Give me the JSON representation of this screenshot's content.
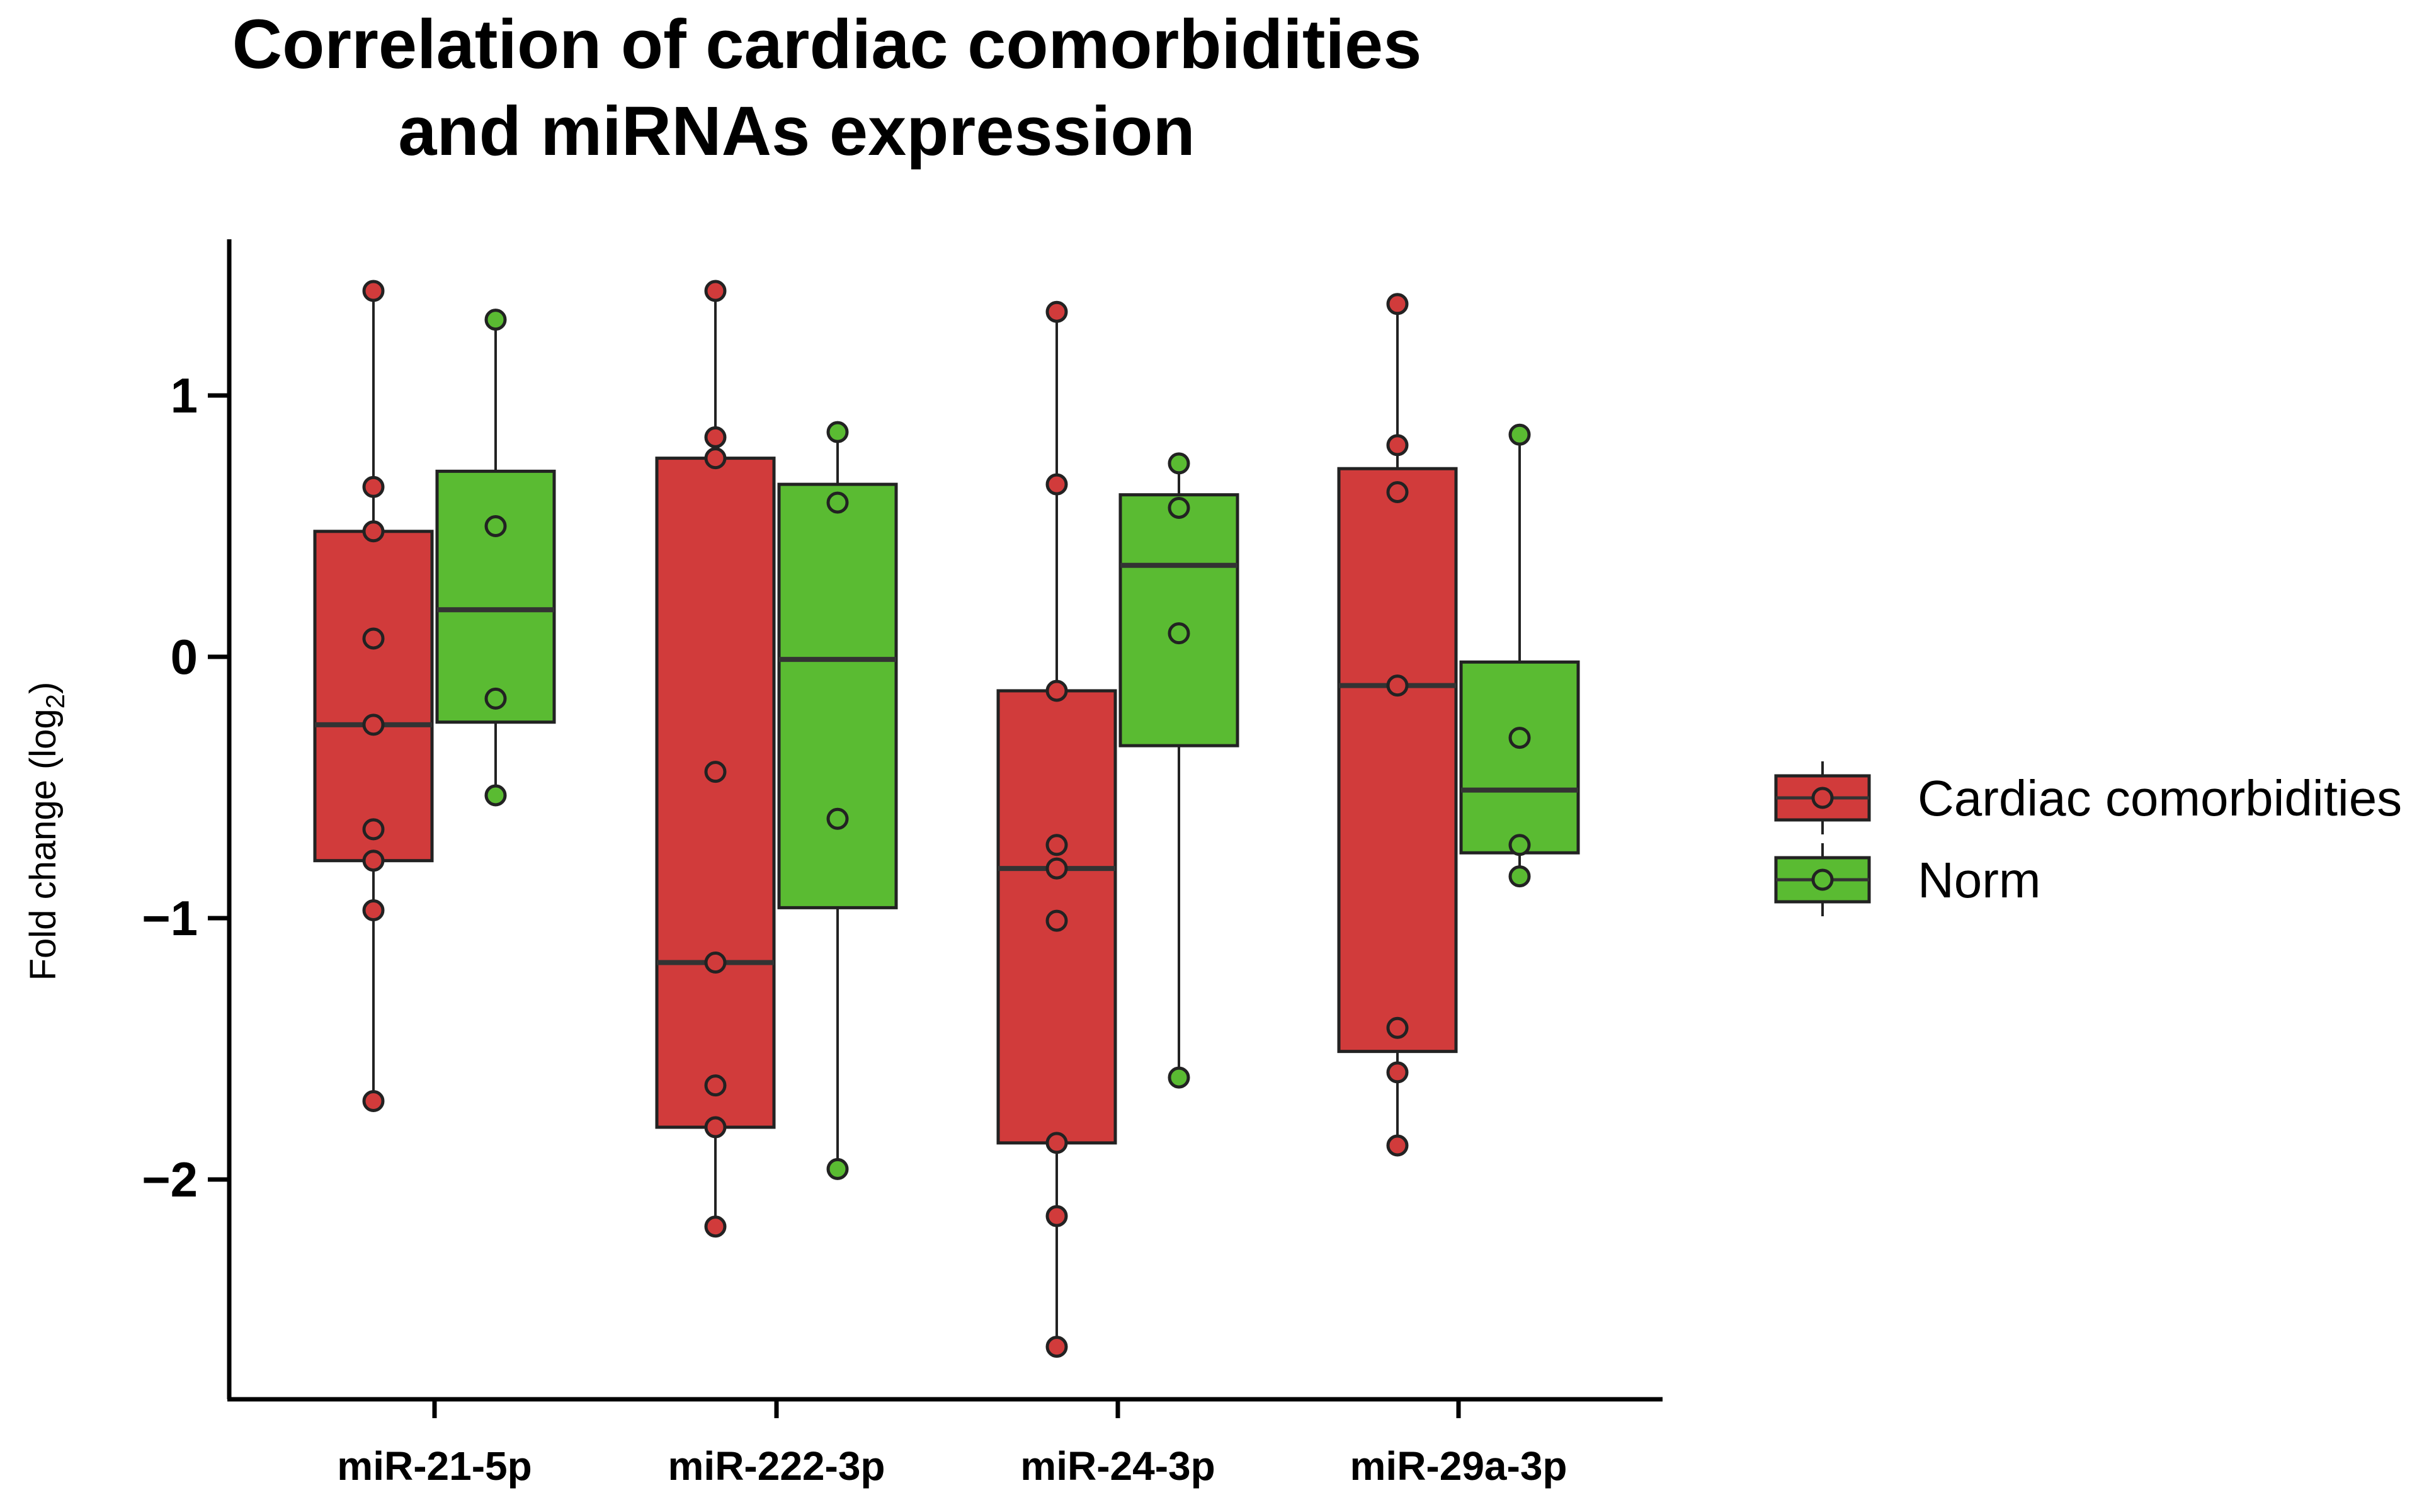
{
  "chart_data": {
    "type": "box",
    "title_lines": [
      "Correlation of cardiac comorbidities",
      "and miRNAs expression"
    ],
    "xlabel": "",
    "ylabel": "Fold change (log",
    "ylabel_subscript": "2",
    "ylabel_close": ")",
    "ylim": [
      -2.85,
      1.6
    ],
    "yticks": [
      1,
      0,
      -1,
      -2
    ],
    "ytick_labels": [
      "1",
      "0",
      "−1",
      "−2"
    ],
    "categories": [
      "miR-21-5p",
      "miR-222-3p",
      "miR-24-3p",
      "miR-29a-3p"
    ],
    "legend_position": "right",
    "series": [
      {
        "name": "Cardiac comorbidities",
        "color": "#d13b3b",
        "boxes": [
          {
            "min": -1.7,
            "q1": -0.78,
            "median": -0.26,
            "q3": 0.48,
            "max": 1.4,
            "points": [
              1.4,
              0.65,
              0.48,
              0.07,
              -0.26,
              -0.66,
              -0.78,
              -0.97,
              -1.7
            ]
          },
          {
            "min": -2.18,
            "q1": -1.8,
            "median": -1.17,
            "q3": 0.76,
            "max": 1.4,
            "points": [
              1.4,
              0.84,
              0.76,
              -0.44,
              -1.17,
              -1.64,
              -1.8,
              -2.18
            ]
          },
          {
            "min": -2.64,
            "q1": -1.86,
            "median": -0.81,
            "q3": -0.13,
            "max": 1.32,
            "points": [
              1.32,
              0.66,
              -0.13,
              -0.72,
              -0.81,
              -1.01,
              -1.86,
              -2.14,
              -2.64
            ]
          },
          {
            "min": -1.87,
            "q1": -1.51,
            "median": -0.11,
            "q3": 0.72,
            "max": 1.35,
            "points": [
              1.35,
              0.81,
              0.63,
              -0.11,
              -1.42,
              -1.59,
              -1.87
            ]
          }
        ]
      },
      {
        "name": "Norm",
        "color": "#5abb32",
        "boxes": [
          {
            "min": -0.53,
            "q1": -0.25,
            "median": 0.18,
            "q3": 0.71,
            "max": 1.29,
            "points": [
              1.29,
              0.5,
              -0.16,
              -0.53
            ]
          },
          {
            "min": -1.96,
            "q1": -0.96,
            "median": -0.01,
            "q3": 0.66,
            "max": 0.86,
            "points": [
              0.86,
              0.59,
              -0.62,
              -1.96
            ]
          },
          {
            "min": -1.61,
            "q1": -0.34,
            "median": 0.35,
            "q3": 0.62,
            "max": 0.74,
            "points": [
              0.74,
              0.57,
              0.09,
              -1.61
            ]
          },
          {
            "min": -0.84,
            "q1": -0.75,
            "median": -0.51,
            "q3": -0.02,
            "max": 0.85,
            "points": [
              0.85,
              -0.31,
              -0.72,
              -0.84
            ]
          }
        ]
      }
    ]
  }
}
